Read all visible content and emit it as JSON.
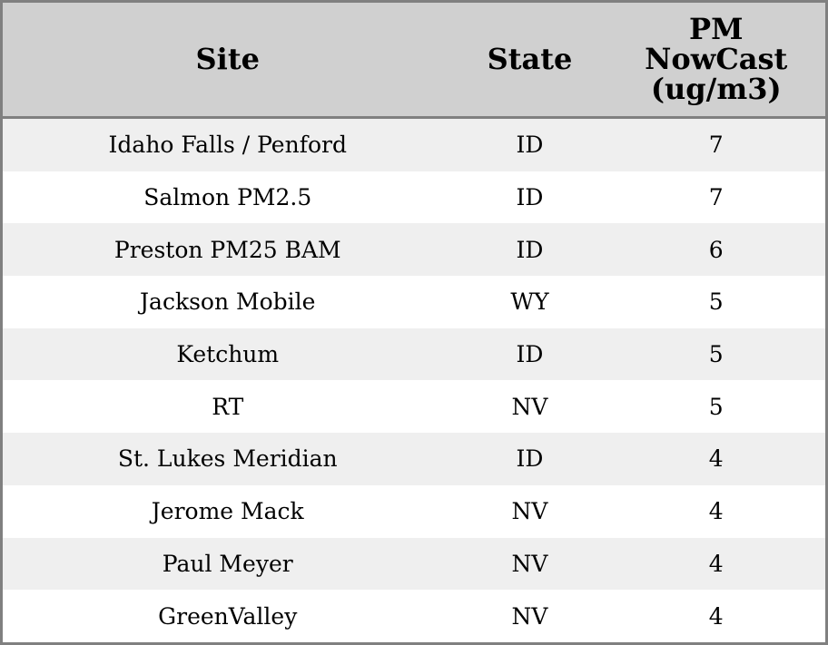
{
  "table": {
    "columns": [
      "Site",
      "State",
      "PM\nNowCast\n(ug/m3)"
    ],
    "header": {
      "site": "Site",
      "state": "State",
      "pm_line1": "PM",
      "pm_line2": "NowCast",
      "pm_line3": "(ug/m3)"
    },
    "rows": [
      {
        "site": "Idaho Falls / Penford",
        "state": "ID",
        "pm": "7"
      },
      {
        "site": "Salmon PM2.5",
        "state": "ID",
        "pm": "7"
      },
      {
        "site": "Preston PM25 BAM",
        "state": "ID",
        "pm": "6"
      },
      {
        "site": "Jackson Mobile",
        "state": "WY",
        "pm": "5"
      },
      {
        "site": "Ketchum",
        "state": "ID",
        "pm": "5"
      },
      {
        "site": "RT",
        "state": "NV",
        "pm": "5"
      },
      {
        "site": "St. Lukes Meridian",
        "state": "ID",
        "pm": "4"
      },
      {
        "site": "Jerome Mack",
        "state": "NV",
        "pm": "4"
      },
      {
        "site": "Paul Meyer",
        "state": "NV",
        "pm": "4"
      },
      {
        "site": "GreenValley",
        "state": "NV",
        "pm": "4"
      }
    ]
  },
  "colors": {
    "header_bg": "#d0d0d0",
    "alt_row_bg": "#efefef",
    "border": "#808080"
  }
}
